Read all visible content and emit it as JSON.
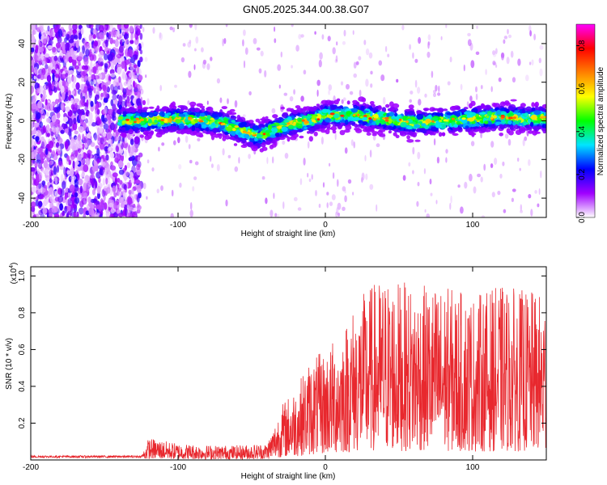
{
  "title": "GN05.2025.344.00.38.G07",
  "chart_data": [
    {
      "type": "heatmap",
      "name": "spectrogram",
      "xlabel": "Height of straight line (km)",
      "ylabel": "Frequency (Hz)",
      "xlim": [
        -200,
        150
      ],
      "ylim": [
        -50,
        50
      ],
      "xticks": [
        -200,
        -100,
        0,
        100
      ],
      "xtick_labels": [
        "-200",
        "-100",
        "0",
        "100"
      ],
      "yticks": [
        -40,
        -20,
        0,
        20,
        40
      ],
      "ytick_labels": [
        "-40",
        "-20",
        "0",
        "20",
        "40"
      ],
      "colorbar": {
        "label": "Normalized spectral amplitude",
        "range": [
          0.0,
          0.9
        ],
        "ticks": [
          0.0,
          0.2,
          0.4,
          0.6,
          0.8
        ],
        "tick_labels": [
          "0.0",
          "0.2",
          "0.4",
          "0.6",
          "0.8"
        ],
        "colors": [
          "#ffffff",
          "#a000ff",
          "#0000ff",
          "#00e5ff",
          "#00ff00",
          "#ffff00",
          "#ff8000",
          "#ff0000",
          "#ff00ff"
        ]
      },
      "ridge": {
        "x": [
          -140,
          -120,
          -100,
          -80,
          -70,
          -60,
          -50,
          -45,
          -40,
          -30,
          -20,
          -10,
          0,
          10,
          20,
          30,
          40,
          60,
          80,
          100,
          120,
          150
        ],
        "y": [
          0,
          0,
          1,
          0,
          -1,
          -4,
          -7,
          -8,
          -6,
          -3,
          -1,
          0,
          3,
          3,
          3,
          2,
          1,
          -1,
          0,
          1,
          2,
          1
        ]
      },
      "noise_x_range": [
        -200,
        -125
      ]
    },
    {
      "type": "line",
      "name": "snr",
      "xlabel": "Height of straight line (km)",
      "ylabel": "SNR (10 * v/v)",
      "y_multiplier": "(x10",
      "y_multiplier_exp": "4",
      "y_multiplier_close": ")",
      "xlim": [
        -200,
        150
      ],
      "ylim": [
        0,
        1.05
      ],
      "xticks": [
        -200,
        -100,
        0,
        100
      ],
      "xtick_labels": [
        "-200",
        "-100",
        "0",
        "100"
      ],
      "yticks": [
        0.2,
        0.4,
        0.6,
        0.8,
        1.0
      ],
      "ytick_labels": [
        "0.2",
        "0.4",
        "0.6",
        "0.8",
        "1.0"
      ],
      "color": "#e8282e",
      "envelope": {
        "x": [
          -200,
          -125,
          -120,
          -100,
          -80,
          -60,
          -40,
          -35,
          -30,
          -20,
          -10,
          0,
          10,
          20,
          30,
          40,
          60,
          80,
          100,
          120,
          150
        ],
        "y": [
          0.02,
          0.02,
          0.12,
          0.09,
          0.08,
          0.08,
          0.09,
          0.18,
          0.3,
          0.4,
          0.55,
          0.6,
          0.7,
          0.85,
          0.95,
          1.0,
          0.95,
          0.95,
          0.9,
          0.95,
          0.9
        ]
      }
    }
  ]
}
